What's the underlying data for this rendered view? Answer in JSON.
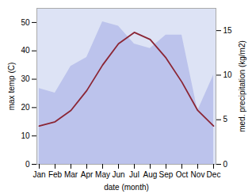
{
  "chart_data": {
    "type": "line",
    "categories": [
      "Jan",
      "Feb",
      "Mar",
      "Apr",
      "May",
      "Jun",
      "Jul",
      "Aug",
      "Sep",
      "Oct",
      "Nov",
      "Dec"
    ],
    "xlabel": "date (month)",
    "ylabel": "max temp (C)",
    "y2label": "med. precipitation (kg/m2)",
    "ylim": [
      0,
      55
    ],
    "yticks": [
      0,
      10,
      20,
      30,
      40,
      50
    ],
    "y2lim": [
      0,
      17.5
    ],
    "y2ticks": [
      0,
      5,
      10,
      15
    ],
    "series": [
      {
        "type": "area",
        "axis": "y2",
        "color": "#b0b8e8",
        "values": [
          8.5,
          8.0,
          11.0,
          12.0,
          16.0,
          15.5,
          13.5,
          13.0,
          14.5,
          14.5,
          6.0,
          10.0
        ]
      },
      {
        "type": "line",
        "color": "#8b2635",
        "values": [
          13.5,
          15.0,
          19.0,
          26.0,
          35.0,
          42.5,
          46.5,
          44.0,
          37.5,
          29.0,
          19.0,
          13.5
        ]
      }
    ]
  }
}
